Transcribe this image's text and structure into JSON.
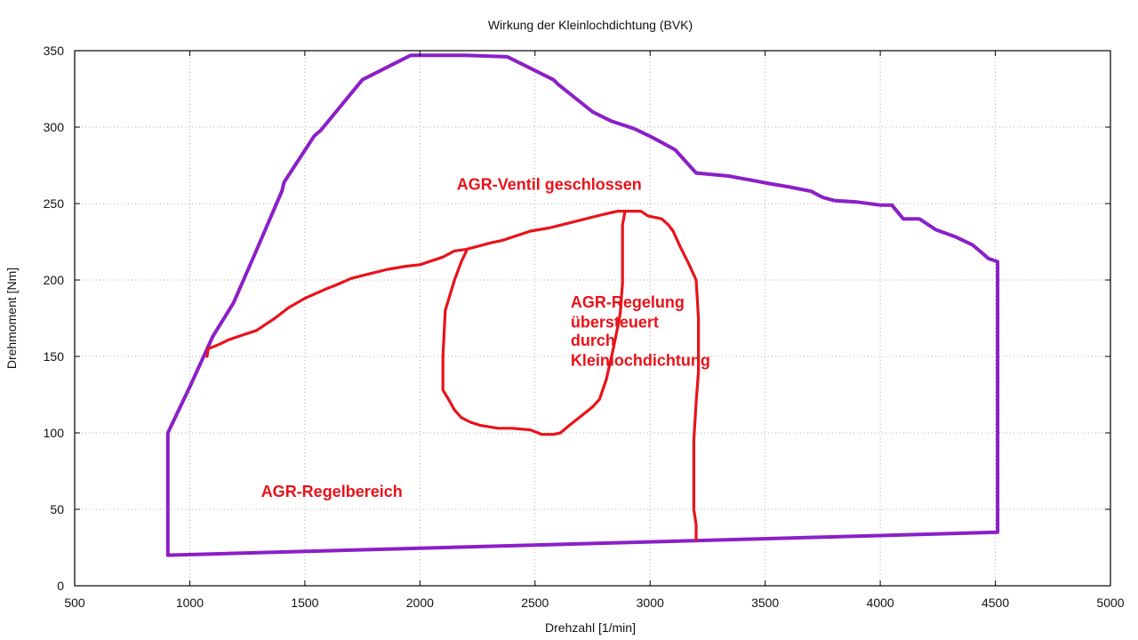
{
  "chart_data": {
    "type": "line",
    "title": "Wirkung der Kleinlochdichtung  (BVK)",
    "xlabel": "Drehzahl [1/min]",
    "ylabel": "Drehmoment [Nm]",
    "xlim": [
      500,
      5000
    ],
    "ylim": [
      0,
      350
    ],
    "xticks": [
      "500",
      "1000",
      "1500",
      "2000",
      "2500",
      "3000",
      "3500",
      "4000",
      "4500",
      "5000"
    ],
    "yticks": [
      "0",
      "50",
      "100",
      "150",
      "200",
      "250",
      "300",
      "350"
    ],
    "grid": true,
    "series": [
      {
        "color": "#8b1fc8",
        "x": [
          905,
          905,
          1000,
          1100,
          1190,
          1280,
          1400,
          1410,
          1540,
          1570,
          1750,
          1960,
          2100,
          2200,
          2380,
          2580,
          2600,
          2700,
          2750,
          2830,
          2930,
          3000,
          3050,
          3110,
          3200,
          3340,
          3450,
          3520,
          3600,
          3700,
          3750,
          3800,
          3900,
          4000,
          4050,
          4100,
          4170,
          4240,
          4330,
          4400,
          4440,
          4470,
          4510,
          4510,
          905
        ],
        "y": [
          20,
          100,
          130,
          163,
          185,
          216,
          258,
          264,
          294,
          298,
          331,
          347,
          347,
          347,
          346,
          331,
          328,
          316,
          310,
          304,
          299,
          294,
          290,
          285,
          270,
          268,
          265,
          263,
          261,
          258,
          254,
          252,
          251,
          249,
          249,
          240,
          240,
          233,
          228,
          223,
          218,
          214,
          212,
          35,
          20
        ]
      },
      {
        "color": "#e8131a",
        "x": [
          1075,
          1080,
          1130,
          1170,
          1230,
          1290,
          1320,
          1370,
          1430,
          1500,
          1590,
          1640,
          1700,
          1780,
          1860,
          1940,
          2000,
          2100,
          2150,
          2200,
          2250,
          2300,
          2360,
          2420,
          2480,
          2560,
          2640,
          2720,
          2800,
          2860,
          2930,
          2960,
          2990,
          3050,
          3080,
          3100,
          3130,
          3170,
          3200,
          3210,
          3210,
          3200,
          3190,
          3190,
          3190,
          3200,
          3200
        ],
        "y": [
          150,
          155,
          158,
          161,
          164,
          167,
          170,
          175,
          182,
          188,
          194,
          197,
          201,
          204,
          207,
          209,
          210,
          215,
          219,
          220,
          222,
          224,
          226,
          229,
          232,
          234,
          237,
          240,
          243,
          245,
          245,
          245,
          242,
          240,
          236,
          232,
          222,
          210,
          200,
          175,
          140,
          120,
          95,
          70,
          50,
          40,
          30
        ]
      },
      {
        "color": "#e8131a",
        "x": [
          2205,
          2180,
          2150,
          2110,
          2100,
          2100,
          2120,
          2150,
          2180,
          2220,
          2260,
          2340,
          2400,
          2480,
          2530,
          2580,
          2610,
          2650,
          2700,
          2750,
          2780,
          2810,
          2840,
          2860,
          2870,
          2880,
          2880,
          2880,
          2890
        ],
        "y": [
          220,
          212,
          200,
          180,
          150,
          128,
          123,
          115,
          110,
          107,
          105,
          103,
          103,
          102,
          99,
          99,
          100,
          105,
          111,
          117,
          122,
          135,
          155,
          170,
          178,
          198,
          220,
          236,
          244
        ]
      }
    ],
    "annotations": [
      {
        "text": "AGR-Ventil geschlossen",
        "color": "#e8131a",
        "x": 2160,
        "y": 259
      },
      {
        "text": "AGR-Regelung",
        "color": "#e8131a",
        "x": 2655,
        "y": 182
      },
      {
        "text": "übersteuert",
        "color": "#e8131a",
        "x": 2655,
        "y": 169
      },
      {
        "text": "durch",
        "color": "#e8131a",
        "x": 2655,
        "y": 157
      },
      {
        "text": "Kleinlochdichtung",
        "color": "#e8131a",
        "x": 2655,
        "y": 144
      },
      {
        "text": "AGR-Regelbereich",
        "color": "#e8131a",
        "x": 1310,
        "y": 58
      }
    ]
  }
}
